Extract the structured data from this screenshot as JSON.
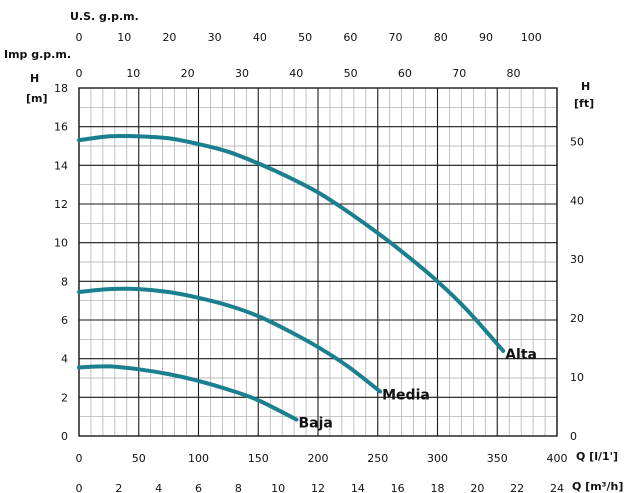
{
  "chart_data": {
    "type": "line",
    "colors": {
      "curve": "#1a7f8e",
      "grid_major": "#1a1a1a",
      "grid_minor": "#a8a8a8",
      "background": "#ffffff"
    },
    "axes": {
      "top_usgpm": {
        "label": "U.S. g.p.m.",
        "range": [
          0,
          105.7
        ],
        "ticks": [
          "0",
          "10",
          "20",
          "30",
          "40",
          "50",
          "60",
          "70",
          "80",
          "90",
          "100"
        ]
      },
      "top_impgpm": {
        "label": "Imp g.p.m.",
        "range": [
          0,
          88
        ],
        "ticks": [
          "0",
          "10",
          "20",
          "30",
          "40",
          "50",
          "60",
          "70",
          "80"
        ]
      },
      "left_m": {
        "label": "H",
        "unit": "[m]",
        "range": [
          0,
          18
        ],
        "ticks": [
          "0",
          "2",
          "4",
          "6",
          "8",
          "10",
          "12",
          "14",
          "16",
          "18"
        ]
      },
      "right_ft": {
        "label": "H",
        "unit": "[ft]",
        "range": [
          0,
          59.06
        ],
        "ticks": [
          "0",
          "10",
          "20",
          "30",
          "40",
          "50"
        ]
      },
      "bottom_lmin": {
        "label": "Q [l/1']",
        "range": [
          0,
          400
        ],
        "ticks": [
          "0",
          "50",
          "100",
          "150",
          "200",
          "250",
          "300",
          "350",
          "400"
        ]
      },
      "bottom_m3h": {
        "label": "Q [m³/h]",
        "range": [
          0,
          24
        ],
        "ticks": [
          "0",
          "2",
          "4",
          "6",
          "8",
          "10",
          "12",
          "14",
          "16",
          "18",
          "20",
          "22",
          "24"
        ]
      }
    },
    "grid": true,
    "series": [
      {
        "name": "Alta",
        "x": [
          0,
          25,
          50,
          75,
          100,
          125,
          150,
          175,
          200,
          225,
          250,
          275,
          300,
          325,
          355
        ],
        "y": [
          15.3,
          15.5,
          15.5,
          15.4,
          15.1,
          14.7,
          14.1,
          13.4,
          12.6,
          11.6,
          10.5,
          9.3,
          8.0,
          6.5,
          4.4
        ]
      },
      {
        "name": "Media",
        "x": [
          0,
          25,
          50,
          75,
          100,
          125,
          150,
          175,
          200,
          225,
          252
        ],
        "y": [
          7.45,
          7.6,
          7.6,
          7.45,
          7.15,
          6.75,
          6.2,
          5.45,
          4.6,
          3.6,
          2.3
        ]
      },
      {
        "name": "Baja",
        "x": [
          0,
          25,
          50,
          75,
          100,
          125,
          150,
          182
        ],
        "y": [
          3.55,
          3.6,
          3.45,
          3.2,
          2.85,
          2.4,
          1.85,
          0.85
        ]
      }
    ]
  }
}
